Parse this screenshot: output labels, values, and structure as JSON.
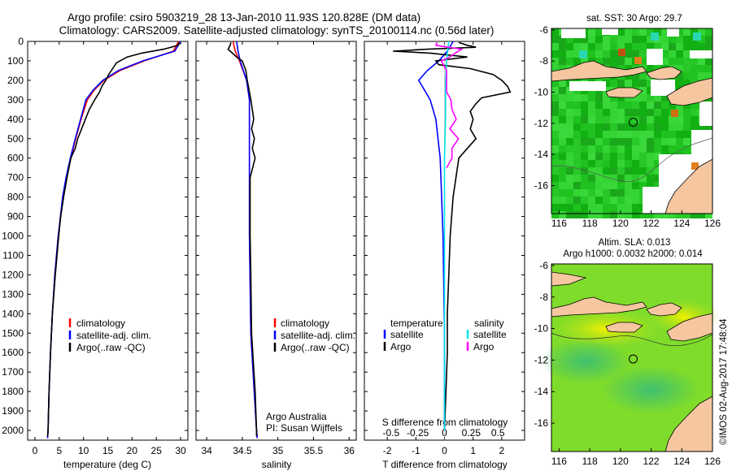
{
  "title_line1": "Argo profile: csiro 5903219_28 13-Jan-2010 11.93S 120.828E (DM data)",
  "title_line2": "Climatology: CARS2009. Satellite-adjusted climatology: synTS_20100114.nc (0.56d later)",
  "colors": {
    "climatology": "#ff0000",
    "satellite": "#0000ff",
    "argo": "#000000",
    "satellite_salinity": "#00e5ee",
    "argo_salinity": "#ff00ff",
    "land": "#f5c6a0",
    "sst_green": "#22cc22",
    "sla_green": "#7fdc2a",
    "sla_yellow": "#f0f000"
  },
  "depth_axis": {
    "ticks": [
      0,
      100,
      200,
      300,
      400,
      500,
      600,
      700,
      800,
      900,
      1000,
      1100,
      1200,
      1300,
      1400,
      1500,
      1600,
      1700,
      1800,
      1900,
      2000
    ],
    "tick_labels": [
      "0",
      "100",
      "200",
      "300",
      "400",
      "500",
      "600",
      "700",
      "800",
      "900",
      "1000",
      "1100",
      "1200",
      "1300",
      "1400",
      "1500",
      "1600",
      "1700",
      "1800",
      "1900",
      "2000"
    ],
    "range": [
      0,
      2050
    ],
    "inverted": true
  },
  "temp_legend": [
    "climatology",
    "satellite-adj. clim.",
    "Argo(..raw -QC)"
  ],
  "sal_legend": [
    "climatology",
    "satellite-adj. clim.",
    "Argo(..raw -QC)"
  ],
  "diff_legend": {
    "temperature_head": "temperature",
    "salinity_head": "salinity",
    "temp_items": [
      "satellite",
      "Argo"
    ],
    "sal_items": [
      "satellite",
      "Argo"
    ]
  },
  "credits": [
    "Argo Australia",
    "PI: Susan Wijffels"
  ],
  "map1_title": "sat. SST: 30 Argo: 29.7",
  "map2_title1": "Altim. SLA: 0.013",
  "map2_title2": "Argo h1000: 0.0032 h2000: 0.014",
  "stamp": "©IMOS 02-Aug-2017 17:48:04",
  "map_axes": {
    "lon_ticks": [
      116,
      118,
      120,
      122,
      124,
      126
    ],
    "lon_labels": [
      "116",
      "118",
      "120",
      "122",
      "124",
      "126"
    ],
    "lat_ticks": [
      -6,
      -8,
      -10,
      -12,
      -14,
      -16
    ],
    "lat_labels": [
      "-6",
      "-8",
      "-10",
      "-12",
      "-14",
      "-16"
    ],
    "lon_range": [
      115.5,
      126
    ],
    "lat_range": [
      -17.8,
      -5.9
    ],
    "argo_position": {
      "lon": 120.83,
      "lat": -11.93
    }
  },
  "chart_data": [
    {
      "type": "line",
      "xlabel": "temperature (deg C)",
      "ylabel": "",
      "x_ticks": [
        0,
        5,
        10,
        15,
        20,
        25,
        30
      ],
      "x_tick_labels": [
        "0",
        "5",
        "10",
        "15",
        "20",
        "25",
        "30"
      ],
      "xlim": [
        -1.5,
        31.5
      ],
      "ylim": [
        2050,
        0
      ],
      "series": [
        {
          "name": "climatology",
          "depth": [
            0,
            50,
            100,
            150,
            200,
            250,
            300,
            400,
            500,
            600,
            700,
            800,
            1000,
            1200,
            1400,
            1600,
            1800,
            2000,
            2040
          ],
          "x": [
            29.6,
            28.5,
            22.5,
            17.5,
            14.2,
            12.2,
            10.8,
            9.5,
            8.4,
            7.4,
            6.5,
            5.8,
            4.8,
            4.1,
            3.6,
            3.2,
            2.9,
            2.7,
            2.6
          ]
        },
        {
          "name": "satellite-adj. clim.",
          "depth": [
            0,
            50,
            100,
            150,
            200,
            250,
            300,
            400,
            500,
            600,
            700,
            800,
            1000,
            1200,
            1400,
            1600,
            1800,
            2000,
            2040
          ],
          "x": [
            30,
            28.8,
            22.2,
            17.2,
            14,
            12,
            10.5,
            9.4,
            8.3,
            7.3,
            6.4,
            5.7,
            4.8,
            4.1,
            3.6,
            3.2,
            2.9,
            2.7,
            2.6
          ]
        },
        {
          "name": "Argo(..raw -QC)",
          "depth": [
            5,
            20,
            40,
            60,
            80,
            110,
            140,
            170,
            200,
            230,
            260,
            300,
            350,
            400,
            450,
            500,
            550,
            600,
            700,
            800,
            900,
            1000,
            1200,
            1400,
            1600,
            1800,
            2000,
            2030
          ],
          "x": [
            29.7,
            29.5,
            26.5,
            22,
            19,
            16.8,
            16,
            15.2,
            14.6,
            13.8,
            13.3,
            12.3,
            11.2,
            10.4,
            9.6,
            8.8,
            8.3,
            7.4,
            6.6,
            5.9,
            5.3,
            4.9,
            4.2,
            3.6,
            3.2,
            2.9,
            2.7,
            2.6
          ]
        }
      ]
    },
    {
      "type": "line",
      "xlabel": "salinity",
      "ylabel": "",
      "x_ticks": [
        34,
        34.5,
        35,
        35.5,
        36
      ],
      "x_tick_labels": [
        "34",
        "34.5",
        "35",
        "35.5",
        "36"
      ],
      "xlim": [
        33.85,
        36.1
      ],
      "ylim": [
        2050,
        0
      ],
      "series": [
        {
          "name": "climatology",
          "depth": [
            0,
            50,
            100,
            200,
            300,
            400,
            600,
            800,
            1000,
            1500,
            2000,
            2040
          ],
          "x": [
            34.37,
            34.4,
            34.46,
            34.56,
            34.6,
            34.6,
            34.6,
            34.6,
            34.6,
            34.62,
            34.7,
            34.71
          ]
        },
        {
          "name": "satellite-adj. clim.",
          "depth": [
            0,
            50,
            100,
            200,
            300,
            400,
            600,
            800,
            1000,
            1500,
            2000,
            2040
          ],
          "x": [
            34.42,
            34.44,
            34.47,
            34.56,
            34.6,
            34.6,
            34.6,
            34.6,
            34.6,
            34.62,
            34.7,
            34.71
          ]
        },
        {
          "name": "Argo(..raw -QC)",
          "depth": [
            5,
            20,
            40,
            60,
            80,
            100,
            150,
            200,
            260,
            300,
            350,
            400,
            450,
            500,
            550,
            600,
            700,
            800,
            1000,
            1200,
            1500,
            1800,
            2000,
            2030
          ],
          "x": [
            34.34,
            34.33,
            34.3,
            34.36,
            34.42,
            34.5,
            34.55,
            34.57,
            34.6,
            34.62,
            34.64,
            34.66,
            34.63,
            34.67,
            34.64,
            34.68,
            34.61,
            34.61,
            34.61,
            34.62,
            34.63,
            34.68,
            34.7,
            34.7
          ]
        }
      ]
    },
    {
      "type": "line",
      "xlabel": "T difference from climatology",
      "xlabel_top": "S difference from climatology",
      "x_ticks": [
        -2,
        -1,
        0,
        1,
        2
      ],
      "x_tick_labels": [
        "-2",
        "-1",
        "0",
        "1",
        "2"
      ],
      "x2_ticks": [
        -0.5,
        -0.25,
        0,
        0.25,
        0.5
      ],
      "x2_tick_labels": [
        "-0.5",
        "-0.25",
        "0",
        "0.25",
        "0.5"
      ],
      "xlim": [
        -2.8,
        2.8
      ],
      "ylim": [
        2050,
        0
      ],
      "series": [
        {
          "name": "temperature satellite",
          "depth": [
            0,
            50,
            100,
            150,
            200,
            250,
            300,
            400,
            600,
            800,
            1000,
            1500,
            2000
          ],
          "x": [
            0.3,
            0.1,
            -0.2,
            -0.6,
            -0.9,
            -0.7,
            -0.5,
            -0.3,
            -0.15,
            -0.1,
            -0.05,
            0,
            0
          ]
        },
        {
          "name": "temperature Argo",
          "depth": [
            5,
            20,
            30,
            40,
            50,
            60,
            80,
            100,
            120,
            140,
            170,
            200,
            230,
            260,
            290,
            320,
            360,
            400,
            450,
            500,
            550,
            600,
            700,
            800,
            900,
            1000,
            1200,
            1400,
            1600,
            1800,
            2000
          ],
          "x": [
            0.5,
            0.8,
            1.1,
            -0.6,
            -1.8,
            -0.5,
            0.8,
            -0.3,
            -0.2,
            0.9,
            1.7,
            2.0,
            2.2,
            2.3,
            1.3,
            1.1,
            0.9,
            1.0,
            0.9,
            1.1,
            0.8,
            0.5,
            0.4,
            0.3,
            0.25,
            0.2,
            0.15,
            0.1,
            0.1,
            0.05,
            0.0
          ]
        },
        {
          "name": "salinity satellite",
          "depth": [
            0,
            50,
            100,
            200,
            400,
            600,
            800,
            1000,
            1500,
            2000
          ],
          "x": [
            0.04,
            0.03,
            0.02,
            0.01,
            0.01,
            0,
            0,
            0,
            0,
            0
          ]
        },
        {
          "name": "salinity Argo",
          "depth": [
            5,
            20,
            40,
            60,
            80,
            100,
            150,
            200,
            260,
            300,
            350,
            400,
            450,
            500,
            550,
            600,
            650
          ],
          "x": [
            -0.07,
            -0.08,
            0.16,
            0.1,
            0.05,
            -0.03,
            0.02,
            0.02,
            0.02,
            0.06,
            0.07,
            0.11,
            0.05,
            0.13,
            0.07,
            0.07,
            0.02
          ]
        }
      ]
    }
  ]
}
